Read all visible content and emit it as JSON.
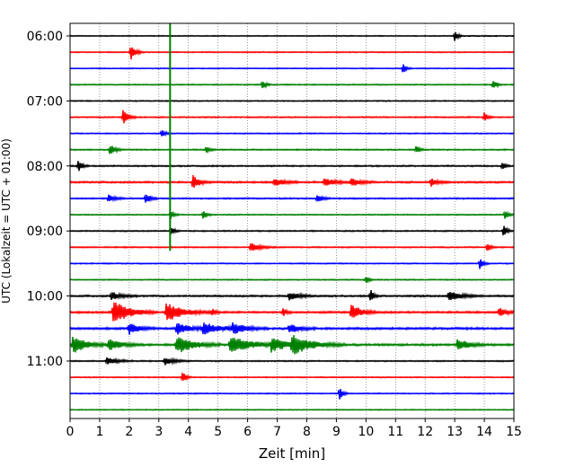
{
  "chart_data": {
    "type": "line",
    "xlabel": "Zeit  [min]",
    "ylabel": "UTC (Lokalzeit = UTC + 01:00)",
    "xlim": [
      0,
      15
    ],
    "x_ticks": [
      0,
      1,
      2,
      3,
      4,
      5,
      6,
      7,
      8,
      9,
      10,
      11,
      12,
      13,
      14,
      15
    ],
    "y_tick_labels": [
      {
        "trace": 0,
        "label": "06:00"
      },
      {
        "trace": 4,
        "label": "07:00"
      },
      {
        "trace": 8,
        "label": "08:00"
      },
      {
        "trace": 12,
        "label": "09:00"
      },
      {
        "trace": 16,
        "label": "10:00"
      },
      {
        "trace": 20,
        "label": "11:00"
      }
    ],
    "trace_count": 24,
    "trace_interval_min": 15,
    "color_cycle": [
      "#000000",
      "#ff0000",
      "#0000ff",
      "#008000"
    ],
    "grid": "vertical dotted",
    "highlight_vertical": {
      "x": 3.38,
      "from_trace": 0,
      "to_trace": 13,
      "color": "#008000"
    },
    "traces": [
      {
        "noise": 0.25,
        "events": [
          {
            "x": 13.0,
            "amp": 1.4,
            "dur": 0.1
          }
        ]
      },
      {
        "noise": 0.3,
        "events": [
          {
            "x": 2.05,
            "amp": 2.0,
            "dur": 0.15
          }
        ]
      },
      {
        "noise": 0.25,
        "events": [
          {
            "x": 11.25,
            "amp": 1.2,
            "dur": 0.1
          }
        ]
      },
      {
        "noise": 0.3,
        "events": [
          {
            "x": 6.5,
            "amp": 1.2,
            "dur": 0.1
          },
          {
            "x": 14.3,
            "amp": 1.4,
            "dur": 0.1
          }
        ]
      },
      {
        "noise": 0.3,
        "events": []
      },
      {
        "noise": 0.35,
        "events": [
          {
            "x": 1.8,
            "amp": 2.0,
            "dur": 0.15
          },
          {
            "x": 14.0,
            "amp": 1.2,
            "dur": 0.1
          }
        ]
      },
      {
        "noise": 0.3,
        "events": [
          {
            "x": 3.1,
            "amp": 0.9,
            "dur": 0.1
          }
        ]
      },
      {
        "noise": 0.35,
        "events": [
          {
            "x": 1.35,
            "amp": 1.4,
            "dur": 0.15
          },
          {
            "x": 4.6,
            "amp": 1.0,
            "dur": 0.1
          },
          {
            "x": 11.7,
            "amp": 0.9,
            "dur": 0.1
          }
        ]
      },
      {
        "noise": 0.4,
        "events": [
          {
            "x": 0.28,
            "amp": 1.4,
            "dur": 0.12
          },
          {
            "x": 14.6,
            "amp": 0.9,
            "dur": 0.1
          }
        ]
      },
      {
        "noise": 0.5,
        "events": [
          {
            "x": 4.15,
            "amp": 1.8,
            "dur": 0.2
          },
          {
            "x": 6.9,
            "amp": 1.0,
            "dur": 0.3
          },
          {
            "x": 8.6,
            "amp": 1.0,
            "dur": 0.3
          },
          {
            "x": 9.5,
            "amp": 1.0,
            "dur": 0.3
          },
          {
            "x": 12.2,
            "amp": 1.0,
            "dur": 0.2
          }
        ]
      },
      {
        "noise": 0.4,
        "events": [
          {
            "x": 1.3,
            "amp": 1.0,
            "dur": 0.2
          },
          {
            "x": 2.55,
            "amp": 1.4,
            "dur": 0.15
          },
          {
            "x": 8.35,
            "amp": 1.0,
            "dur": 0.15
          }
        ]
      },
      {
        "noise": 0.3,
        "events": [
          {
            "x": 3.4,
            "amp": 1.2,
            "dur": 0.1
          },
          {
            "x": 4.5,
            "amp": 1.2,
            "dur": 0.1
          },
          {
            "x": 14.7,
            "amp": 1.2,
            "dur": 0.1
          }
        ]
      },
      {
        "noise": 0.35,
        "events": [
          {
            "x": 3.4,
            "amp": 1.2,
            "dur": 0.1
          },
          {
            "x": 14.65,
            "amp": 1.6,
            "dur": 0.1
          }
        ]
      },
      {
        "noise": 0.35,
        "events": [
          {
            "x": 6.1,
            "amp": 1.0,
            "dur": 0.3
          },
          {
            "x": 14.1,
            "amp": 1.2,
            "dur": 0.1
          }
        ]
      },
      {
        "noise": 0.3,
        "events": [
          {
            "x": 13.85,
            "amp": 1.4,
            "dur": 0.1
          }
        ]
      },
      {
        "noise": 0.3,
        "events": [
          {
            "x": 10.0,
            "amp": 0.9,
            "dur": 0.1
          }
        ]
      },
      {
        "noise": 0.5,
        "events": [
          {
            "x": 1.4,
            "amp": 1.0,
            "dur": 0.3
          },
          {
            "x": 7.4,
            "amp": 1.0,
            "dur": 0.3
          },
          {
            "x": 10.15,
            "amp": 1.6,
            "dur": 0.1
          },
          {
            "x": 12.8,
            "amp": 1.2,
            "dur": 0.4
          }
        ]
      },
      {
        "noise": 0.55,
        "events": [
          {
            "x": 1.45,
            "amp": 3.0,
            "dur": 0.5
          },
          {
            "x": 3.25,
            "amp": 2.4,
            "dur": 0.5
          },
          {
            "x": 4.8,
            "amp": 1.0,
            "dur": 0.1
          },
          {
            "x": 7.2,
            "amp": 1.0,
            "dur": 0.1
          },
          {
            "x": 9.5,
            "amp": 2.0,
            "dur": 0.3
          },
          {
            "x": 14.5,
            "amp": 1.2,
            "dur": 0.2
          }
        ]
      },
      {
        "noise": 0.6,
        "events": [
          {
            "x": 2.0,
            "amp": 1.4,
            "dur": 0.3
          },
          {
            "x": 3.6,
            "amp": 1.4,
            "dur": 0.4
          },
          {
            "x": 4.5,
            "amp": 1.2,
            "dur": 0.6
          },
          {
            "x": 5.5,
            "amp": 1.2,
            "dur": 0.4
          },
          {
            "x": 7.4,
            "amp": 1.2,
            "dur": 0.3
          }
        ]
      },
      {
        "noise": 0.6,
        "events": [
          {
            "x": 0.1,
            "amp": 2.2,
            "dur": 0.4
          },
          {
            "x": 1.3,
            "amp": 1.4,
            "dur": 0.4
          },
          {
            "x": 3.6,
            "amp": 2.2,
            "dur": 0.5
          },
          {
            "x": 5.4,
            "amp": 2.2,
            "dur": 0.6
          },
          {
            "x": 6.8,
            "amp": 1.6,
            "dur": 0.5
          },
          {
            "x": 7.5,
            "amp": 2.2,
            "dur": 0.6
          },
          {
            "x": 13.1,
            "amp": 1.6,
            "dur": 0.3
          }
        ]
      },
      {
        "noise": 0.35,
        "events": [
          {
            "x": 1.25,
            "amp": 1.0,
            "dur": 0.3
          },
          {
            "x": 3.2,
            "amp": 1.0,
            "dur": 0.3
          }
        ]
      },
      {
        "noise": 0.3,
        "events": [
          {
            "x": 3.8,
            "amp": 1.6,
            "dur": 0.1
          }
        ]
      },
      {
        "noise": 0.3,
        "events": [
          {
            "x": 9.1,
            "amp": 1.8,
            "dur": 0.1
          }
        ]
      },
      {
        "noise": 0.25,
        "events": []
      }
    ]
  }
}
